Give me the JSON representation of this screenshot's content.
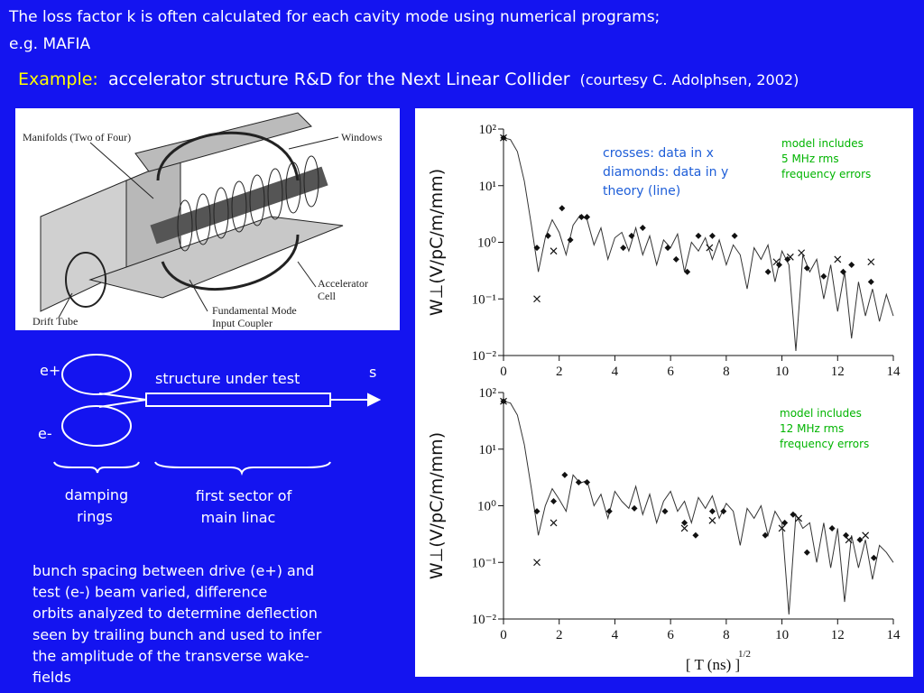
{
  "header": {
    "line1": "The loss factor k is often calculated for each cavity mode using numerical programs;",
    "line2": "e.g. MAFIA"
  },
  "example": {
    "label": "Example:",
    "text": "accelerator structure R&D for the Next Linear Collider",
    "credit": "(courtesy C. Adolphsen, 2002)"
  },
  "figure": {
    "labels": [
      "Manifolds (Two of Four)",
      "Windows",
      "Accelerator",
      "Cell",
      "Fundamental Mode",
      "Input Coupler",
      "Drift Tube"
    ]
  },
  "diagram": {
    "positron": "e+",
    "electron": "e-",
    "structure": "structure under test",
    "axis": "s",
    "rings": [
      "damping",
      "rings"
    ],
    "linac": [
      "first sector of",
      "main linac"
    ]
  },
  "paragraph": [
    "bunch spacing between drive (e+) and",
    "test (e-) beam varied, difference",
    "orbits analyzed to determine deflection",
    "seen by trailing bunch and used to infer",
    "the amplitude of the transverse wake-",
    "fields"
  ],
  "chart_data": [
    {
      "type": "line",
      "log_y": true,
      "ylabel": "W⊥(V/pC/m/mm)",
      "annotations": [
        "crosses: data in x",
        "diamonds: data in y",
        "theory (line)"
      ],
      "model_note": [
        "model includes",
        "5 MHz rms",
        "frequency errors"
      ],
      "xlim": [
        0,
        14
      ],
      "xticks": [
        0,
        2,
        4,
        6,
        8,
        10,
        12,
        14
      ],
      "ylim": [
        0.01,
        100
      ],
      "yticks": [
        {
          "value": 0.01,
          "label": "10⁻²"
        },
        {
          "value": 0.1,
          "label": "10⁻¹"
        },
        {
          "value": 1,
          "label": "10⁰"
        },
        {
          "value": 10,
          "label": "10¹"
        },
        {
          "value": 100,
          "label": "10²"
        }
      ],
      "series": [
        {
          "name": "theory",
          "marker": "line",
          "color": "#333333",
          "x": [
            0,
            0.25,
            0.5,
            0.75,
            1,
            1.25,
            1.5,
            1.75,
            2,
            2.25,
            2.5,
            2.75,
            3,
            3.25,
            3.5,
            3.75,
            4,
            4.25,
            4.5,
            4.75,
            5,
            5.25,
            5.5,
            5.75,
            6,
            6.25,
            6.5,
            6.75,
            7,
            7.25,
            7.5,
            7.75,
            8,
            8.25,
            8.5,
            8.75,
            9,
            9.25,
            9.5,
            9.75,
            10,
            10.25,
            10.5,
            10.75,
            11,
            11.25,
            11.5,
            11.75,
            12,
            12.25,
            12.5,
            12.75,
            13,
            13.25,
            13.5,
            13.75,
            14
          ],
          "values": [
            70,
            65,
            40,
            12,
            2,
            0.3,
            1.2,
            2.5,
            1.5,
            0.6,
            2,
            3,
            2.5,
            0.9,
            1.8,
            0.5,
            1.2,
            1.5,
            0.7,
            1.8,
            0.6,
            1.3,
            0.4,
            1.1,
            0.8,
            1.4,
            0.3,
            1,
            0.7,
            1.2,
            0.5,
            1.1,
            0.4,
            0.9,
            0.6,
            0.15,
            0.8,
            0.5,
            0.9,
            0.2,
            0.7,
            0.4,
            0.012,
            0.6,
            0.3,
            0.5,
            0.1,
            0.4,
            0.06,
            0.3,
            0.02,
            0.2,
            0.05,
            0.15,
            0.04,
            0.12,
            0.05
          ]
        },
        {
          "name": "crosses",
          "marker": "cross",
          "color": "#111111",
          "x": [
            0,
            1.2,
            1.8,
            7.4,
            9.8,
            10.3,
            10.7,
            12,
            13.2
          ],
          "values": [
            70,
            0.1,
            0.7,
            0.8,
            0.45,
            0.55,
            0.65,
            0.5,
            0.45
          ]
        },
        {
          "name": "diamonds",
          "marker": "diamond",
          "color": "#111111",
          "x": [
            0,
            1.2,
            1.6,
            2.1,
            2.4,
            2.8,
            3,
            4.3,
            4.6,
            5,
            5.9,
            6.2,
            6.6,
            7,
            7.5,
            8.3,
            9.5,
            9.9,
            10.2,
            10.9,
            11.5,
            12.2,
            12.5,
            13.2
          ],
          "values": [
            70,
            0.8,
            1.3,
            4,
            1.1,
            2.8,
            2.8,
            0.8,
            1.3,
            1.8,
            0.8,
            0.5,
            0.3,
            1.3,
            1.3,
            1.3,
            0.3,
            0.4,
            0.5,
            0.35,
            0.25,
            0.3,
            0.4,
            0.2
          ]
        }
      ]
    },
    {
      "type": "line",
      "log_y": true,
      "ylabel": "W⊥(V/pC/m/mm)",
      "xlabel": "[ T (ns) ]",
      "xlabel_exponent": "1/2",
      "model_note": [
        "model includes",
        "12 MHz rms",
        "frequency errors"
      ],
      "xlim": [
        0,
        14
      ],
      "xticks": [
        0,
        2,
        4,
        6,
        8,
        10,
        12,
        14
      ],
      "ylim": [
        0.01,
        100
      ],
      "yticks": [
        {
          "value": 0.01,
          "label": "10⁻²"
        },
        {
          "value": 0.1,
          "label": "10⁻¹"
        },
        {
          "value": 1,
          "label": "10⁰"
        },
        {
          "value": 10,
          "label": "10¹"
        },
        {
          "value": 100,
          "label": "10²"
        }
      ],
      "series": [
        {
          "name": "theory",
          "marker": "line",
          "color": "#333333",
          "x": [
            0,
            0.25,
            0.5,
            0.75,
            1,
            1.25,
            1.5,
            1.75,
            2,
            2.25,
            2.5,
            2.75,
            3,
            3.25,
            3.5,
            3.75,
            4,
            4.25,
            4.5,
            4.75,
            5,
            5.25,
            5.5,
            5.75,
            6,
            6.25,
            6.5,
            6.75,
            7,
            7.25,
            7.5,
            7.75,
            8,
            8.25,
            8.5,
            8.75,
            9,
            9.25,
            9.5,
            9.75,
            10,
            10.25,
            10.5,
            10.75,
            11,
            11.25,
            11.5,
            11.75,
            12,
            12.25,
            12.5,
            12.75,
            13,
            13.25,
            13.5,
            13.75,
            14
          ],
          "values": [
            70,
            65,
            40,
            12,
            2,
            0.3,
            1,
            2,
            1.3,
            0.8,
            3.5,
            2.5,
            2.8,
            1,
            1.6,
            0.6,
            1.8,
            1.2,
            0.9,
            2.2,
            0.7,
            1.6,
            0.5,
            1.2,
            1.8,
            0.8,
            1.2,
            0.5,
            1.4,
            0.9,
            1.5,
            0.6,
            1.1,
            0.8,
            0.2,
            0.9,
            0.6,
            1,
            0.3,
            0.8,
            0.5,
            0.012,
            0.7,
            0.4,
            0.5,
            0.1,
            0.5,
            0.08,
            0.4,
            0.02,
            0.3,
            0.08,
            0.25,
            0.05,
            0.2,
            0.15,
            0.1
          ]
        },
        {
          "name": "crosses",
          "marker": "cross",
          "color": "#111111",
          "x": [
            0,
            1.2,
            1.8,
            6.5,
            7.5,
            10,
            10.6,
            12.4,
            13
          ],
          "values": [
            70,
            0.1,
            0.5,
            0.4,
            0.55,
            0.4,
            0.6,
            0.25,
            0.3
          ]
        },
        {
          "name": "diamonds",
          "marker": "diamond",
          "color": "#111111",
          "x": [
            0,
            1.2,
            1.8,
            2.2,
            2.7,
            3,
            3.8,
            4.7,
            5.8,
            6.5,
            6.9,
            7.5,
            7.9,
            9.4,
            10.1,
            10.4,
            10.9,
            11.8,
            12.3,
            12.8,
            13.3
          ],
          "values": [
            70,
            0.8,
            1.2,
            3.5,
            2.6,
            2.6,
            0.8,
            0.9,
            0.8,
            0.5,
            0.3,
            0.8,
            0.8,
            0.3,
            0.5,
            0.7,
            0.15,
            0.4,
            0.3,
            0.25,
            0.12
          ]
        }
      ]
    }
  ]
}
